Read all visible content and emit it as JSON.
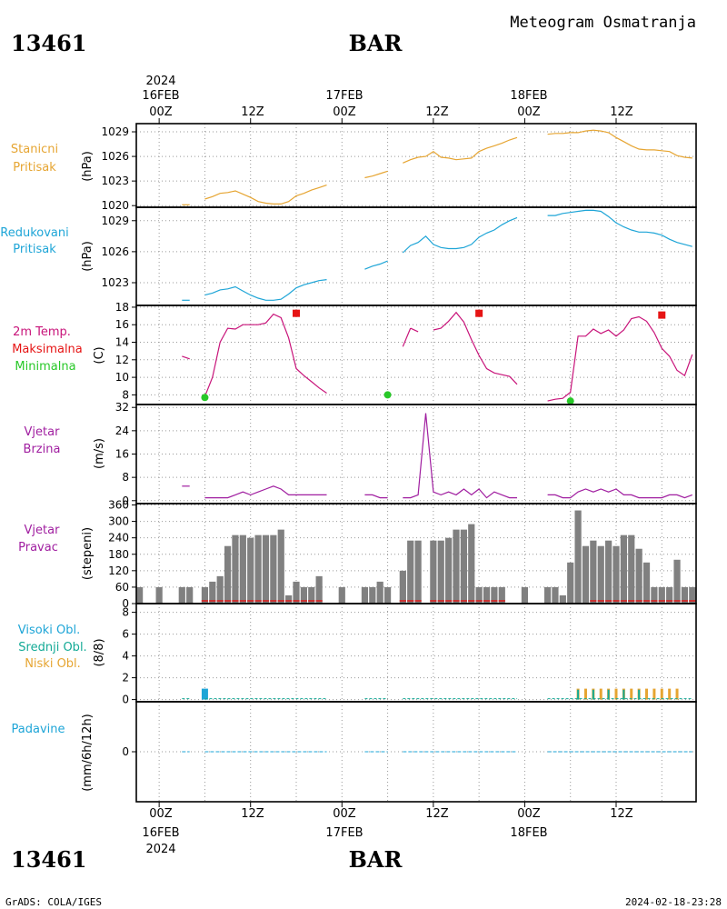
{
  "header": {
    "station_id": "13461",
    "station_name": "BAR",
    "subtitle": "Meteogram Osmatranja"
  },
  "footer": {
    "credit": "GrADS: COLA/IGES",
    "timestamp": "2024-02-18-23:28"
  },
  "time_axis": {
    "year": "2024",
    "day_labels": [
      "16FEB",
      "17FEB",
      "18FEB"
    ],
    "hour_labels": [
      "00Z",
      "12Z",
      "00Z",
      "12Z",
      "00Z",
      "12Z"
    ],
    "hours": [
      0,
      12,
      24,
      36,
      48,
      60
    ],
    "range_hours": [
      -3,
      70.5
    ]
  },
  "panels": {
    "pressure": {
      "label_lines": [
        "Stanicni",
        "Pritisak"
      ],
      "unit": "(hPa)",
      "yticks": [
        1020,
        1023,
        1026,
        1029
      ],
      "color": "#e6a532"
    },
    "reduced_pressure": {
      "label_lines": [
        "Redukovani",
        "Pritisak"
      ],
      "unit": "(hPa)",
      "yticks": [
        1023,
        1026,
        1029
      ],
      "color": "#1ea5d7"
    },
    "temperature": {
      "label_lines": [
        "2m Temp.",
        "Maksimalna",
        "Minimalna"
      ],
      "label_colors": [
        "#c8147a",
        "#e61414",
        "#28c828"
      ],
      "unit": "(C)",
      "yticks": [
        8,
        10,
        12,
        14,
        16,
        18
      ]
    },
    "wind_speed": {
      "label_lines": [
        "Vjetar",
        "Brzina"
      ],
      "unit": "(m/s)",
      "yticks": [
        0,
        8,
        16,
        24,
        32
      ],
      "color": "#a01ea0"
    },
    "wind_direction": {
      "label_lines": [
        "Vjetar",
        "Pravac"
      ],
      "unit": "(stepeni)",
      "yticks": [
        0,
        60,
        120,
        180,
        240,
        300,
        360
      ],
      "color": "#a01ea0"
    },
    "clouds": {
      "label_lines": [
        "Visoki Obl.",
        "Srednji Obl.",
        "Niski Obl."
      ],
      "label_colors": [
        "#1ea5d7",
        "#14aa96",
        "#e6a532"
      ],
      "unit": "(8/8)",
      "yticks": [
        0,
        2,
        4,
        6,
        8
      ]
    },
    "precipitation": {
      "label_lines": [
        "Padavine"
      ],
      "unit": "(mm/6h/12h)",
      "yticks": [
        0
      ],
      "color": "#1ea5d7"
    }
  },
  "chart_data": [
    {
      "type": "line",
      "title": "Stanicni Pritisak",
      "ylabel": "(hPa)",
      "ylim": [
        1019.8,
        1030
      ],
      "x_unit": "hours since 2024-02-16 00Z",
      "segments": [
        {
          "x": [
            3,
            4
          ],
          "y": [
            1020.1,
            1020.1
          ]
        },
        {
          "x": [
            6,
            7,
            8,
            9,
            10,
            11,
            12,
            13,
            14,
            15,
            16,
            17,
            18,
            19,
            20,
            21,
            22
          ],
          "y": [
            1020.8,
            1021.1,
            1021.5,
            1021.6,
            1021.8,
            1021.4,
            1021.0,
            1020.5,
            1020.3,
            1020.2,
            1020.2,
            1020.5,
            1021.2,
            1021.5,
            1021.9,
            1022.2,
            1022.5
          ]
        },
        {
          "x": [
            27,
            28,
            29,
            30
          ],
          "y": [
            1023.4,
            1023.6,
            1023.9,
            1024.2
          ]
        },
        {
          "x": [
            32,
            33,
            34,
            35,
            36,
            37,
            38,
            39,
            40,
            41,
            42,
            43,
            44,
            45,
            46,
            47
          ],
          "y": [
            1025.2,
            1025.6,
            1025.9,
            1026.0,
            1026.6,
            1025.9,
            1025.8,
            1025.6,
            1025.7,
            1025.8,
            1026.6,
            1027.0,
            1027.3,
            1027.6,
            1028.0,
            1028.3
          ]
        },
        {
          "x": [
            51,
            52,
            53,
            54,
            55,
            56,
            57,
            58,
            59,
            60,
            61,
            62,
            63,
            64,
            65,
            66,
            67,
            68,
            69,
            70
          ],
          "y": [
            1028.7,
            1028.8,
            1028.8,
            1028.9,
            1028.9,
            1029.1,
            1029.2,
            1029.1,
            1028.9,
            1028.3,
            1027.8,
            1027.3,
            1026.9,
            1026.8,
            1026.8,
            1026.7,
            1026.6,
            1026.1,
            1025.9,
            1025.8
          ]
        }
      ]
    },
    {
      "type": "line",
      "title": "Redukovani Pritisak",
      "ylabel": "(hPa)",
      "ylim": [
        1020.8,
        1030.3
      ],
      "x_unit": "hours since 2024-02-16 00Z",
      "segments": [
        {
          "x": [
            3,
            4
          ],
          "y": [
            1021.3,
            1021.3
          ]
        },
        {
          "x": [
            6,
            7,
            8,
            9,
            10,
            11,
            12,
            13,
            14,
            15,
            16,
            17,
            18,
            19,
            20,
            21,
            22
          ],
          "y": [
            1021.8,
            1022.0,
            1022.3,
            1022.4,
            1022.6,
            1022.2,
            1021.8,
            1021.5,
            1021.3,
            1021.3,
            1021.4,
            1021.9,
            1022.5,
            1022.8,
            1023.0,
            1023.2,
            1023.3
          ]
        },
        {
          "x": [
            27,
            28,
            29,
            30
          ],
          "y": [
            1024.3,
            1024.6,
            1024.8,
            1025.1
          ]
        },
        {
          "x": [
            32,
            33,
            34,
            35,
            36,
            37,
            38,
            39,
            40,
            41,
            42,
            43,
            44,
            45,
            46,
            47
          ],
          "y": [
            1025.9,
            1026.6,
            1026.9,
            1027.5,
            1026.7,
            1026.4,
            1026.3,
            1026.3,
            1026.4,
            1026.7,
            1027.4,
            1027.8,
            1028.1,
            1028.6,
            1029.0,
            1029.3
          ]
        },
        {
          "x": [
            51,
            52,
            53,
            54,
            55,
            56,
            57,
            58,
            59,
            60,
            61,
            62,
            63,
            64,
            65,
            66,
            67,
            68,
            69,
            70
          ],
          "y": [
            1029.5,
            1029.5,
            1029.7,
            1029.8,
            1029.9,
            1030.0,
            1030.0,
            1029.9,
            1029.4,
            1028.8,
            1028.4,
            1028.1,
            1027.9,
            1027.9,
            1027.8,
            1027.6,
            1027.2,
            1026.9,
            1026.7,
            1026.5
          ]
        }
      ]
    },
    {
      "type": "line",
      "title": "2m Temp. / Maksimalna / Minimalna",
      "ylabel": "(C)",
      "ylim": [
        6.9,
        18.2
      ],
      "x_unit": "hours since 2024-02-16 00Z",
      "segments": [
        {
          "x": [
            3,
            4
          ],
          "y": [
            12.4,
            12.1
          ]
        },
        {
          "x": [
            6,
            7,
            8,
            9,
            10,
            11,
            12,
            13,
            14,
            15,
            16,
            17,
            18,
            19,
            20,
            21,
            22
          ],
          "y": [
            7.8,
            10.0,
            14.0,
            15.6,
            15.5,
            16.0,
            16.0,
            16.0,
            16.2,
            17.2,
            16.8,
            14.5,
            11.0,
            10.2,
            9.5,
            8.8,
            8.2
          ]
        },
        {
          "x": [
            32,
            33
          ],
          "y": [
            13.5,
            15.6
          ]
        },
        {
          "x": [
            33,
            34
          ],
          "y": [
            15.6,
            15.2
          ]
        },
        {
          "x": [
            36,
            37,
            38,
            39,
            40,
            41,
            42,
            43,
            44,
            45,
            46,
            47
          ],
          "y": [
            15.4,
            15.6,
            16.4,
            17.4,
            16.3,
            14.3,
            12.5,
            11.0,
            10.5,
            10.3,
            10.1,
            9.2
          ]
        },
        {
          "x": [
            51,
            52,
            53,
            54,
            55,
            56,
            57,
            58,
            59,
            60,
            61,
            62,
            63,
            64,
            65,
            66,
            67,
            68,
            69,
            70
          ],
          "y": [
            7.3,
            7.5,
            7.6,
            8.3,
            14.7,
            14.7,
            15.5,
            15.0,
            15.4,
            14.7,
            15.4,
            16.7,
            16.9,
            16.4,
            15.1,
            13.3,
            12.4,
            10.8,
            10.2,
            12.6
          ]
        }
      ],
      "maxima": [
        {
          "x": 18,
          "y": 17.3
        },
        {
          "x": 42,
          "y": 17.3
        },
        {
          "x": 66,
          "y": 17.1
        }
      ],
      "minima": [
        {
          "x": 6,
          "y": 7.7
        },
        {
          "x": 30,
          "y": 8.0
        },
        {
          "x": 54,
          "y": 7.3
        }
      ]
    },
    {
      "type": "line",
      "title": "Vjetar Brzina",
      "ylabel": "(m/s)",
      "ylim": [
        -1,
        33
      ],
      "x_unit": "hours since 2024-02-16 00Z",
      "segments": [
        {
          "x": [
            3,
            4
          ],
          "y": [
            5,
            5
          ]
        },
        {
          "x": [
            6,
            7,
            8,
            9,
            10,
            11,
            12,
            13,
            14,
            15,
            16,
            17,
            18,
            19,
            20,
            21,
            22
          ],
          "y": [
            1,
            1,
            1,
            1,
            2,
            3,
            2,
            3,
            4,
            5,
            4,
            2,
            2,
            2,
            2,
            2,
            2
          ]
        },
        {
          "x": [
            27,
            28,
            29,
            30
          ],
          "y": [
            2,
            2,
            1,
            1
          ]
        },
        {
          "x": [
            32,
            33,
            34,
            35,
            36,
            37,
            38,
            39,
            40,
            41,
            42,
            43,
            44,
            45,
            46,
            47
          ],
          "y": [
            1,
            1,
            2,
            30,
            3,
            2,
            3,
            2,
            4,
            2,
            4,
            1,
            3,
            2,
            1,
            1
          ]
        },
        {
          "x": [
            51,
            52,
            53,
            54,
            55,
            56,
            57,
            58,
            59,
            60,
            61,
            62,
            63,
            64,
            65,
            66,
            67,
            68,
            69,
            70
          ],
          "y": [
            2,
            2,
            1,
            1,
            3,
            4,
            3,
            4,
            3,
            4,
            2,
            2,
            1,
            1,
            1,
            1,
            2,
            2,
            1,
            2
          ]
        }
      ]
    },
    {
      "type": "bar",
      "title": "Vjetar Pravac",
      "ylabel": "(stepeni)",
      "ylim": [
        0,
        365
      ],
      "x_unit": "hours since 2024-02-16 00Z",
      "x": [
        -3,
        0,
        3,
        4,
        6,
        7,
        8,
        9,
        10,
        11,
        12,
        13,
        14,
        15,
        16,
        17,
        18,
        19,
        20,
        21,
        24,
        27,
        28,
        29,
        30,
        32,
        33,
        34,
        36,
        37,
        38,
        39,
        40,
        41,
        42,
        43,
        44,
        45,
        48,
        51,
        52,
        53,
        54,
        55,
        56,
        57,
        58,
        59,
        60,
        61,
        62,
        63,
        64,
        65,
        66,
        67,
        68,
        69,
        70
      ],
      "values": [
        60,
        60,
        60,
        60,
        60,
        80,
        100,
        210,
        250,
        250,
        240,
        250,
        250,
        250,
        270,
        30,
        80,
        60,
        60,
        100,
        60,
        60,
        60,
        80,
        60,
        120,
        230,
        230,
        230,
        230,
        240,
        270,
        270,
        290,
        60,
        60,
        60,
        60,
        60,
        60,
        60,
        30,
        150,
        340,
        210,
        230,
        210,
        230,
        210,
        250,
        250,
        200,
        150,
        60,
        60,
        60,
        160,
        60,
        60
      ],
      "calm_marks_x": [
        6,
        7,
        8,
        9,
        10,
        11,
        12,
        13,
        14,
        15,
        16,
        17,
        18,
        19,
        20,
        21,
        32,
        33,
        34,
        36,
        37,
        38,
        39,
        40,
        41,
        42,
        43,
        44,
        45,
        57,
        58,
        59,
        60,
        61,
        62,
        63,
        64,
        65,
        66,
        67,
        68,
        69,
        70
      ]
    },
    {
      "type": "bar",
      "title": "Visoki Obl. / Srednji Obl. / Niski Obl.",
      "ylabel": "(8/8)",
      "ylim": [
        -0.2,
        8.8
      ],
      "x_unit": "hours since 2024-02-16 00Z",
      "series": [
        {
          "name": "Visoki Obl.",
          "x": [
            6
          ],
          "values": [
            1.0
          ]
        },
        {
          "name": "Niski Obl.",
          "x": [
            55,
            56,
            57,
            58,
            59,
            60,
            61,
            62,
            63,
            64,
            65,
            66,
            67,
            68
          ],
          "values": [
            1.0,
            1.0,
            1.0,
            1.0,
            1.0,
            1.0,
            1.0,
            1.0,
            1.0,
            1.0,
            1.0,
            1.0,
            1.0,
            1.0
          ]
        },
        {
          "name": "Srednji Obl.",
          "x": [
            55,
            57,
            59,
            61,
            63
          ],
          "values": [
            0.9,
            0.9,
            0.9,
            0.9,
            0.9
          ]
        }
      ]
    },
    {
      "type": "line",
      "title": "Padavine",
      "ylabel": "(mm/6h/12h)",
      "ylim": [
        -8,
        8
      ],
      "x_unit": "hours since 2024-02-16 00Z",
      "values_all_zero": true
    }
  ]
}
